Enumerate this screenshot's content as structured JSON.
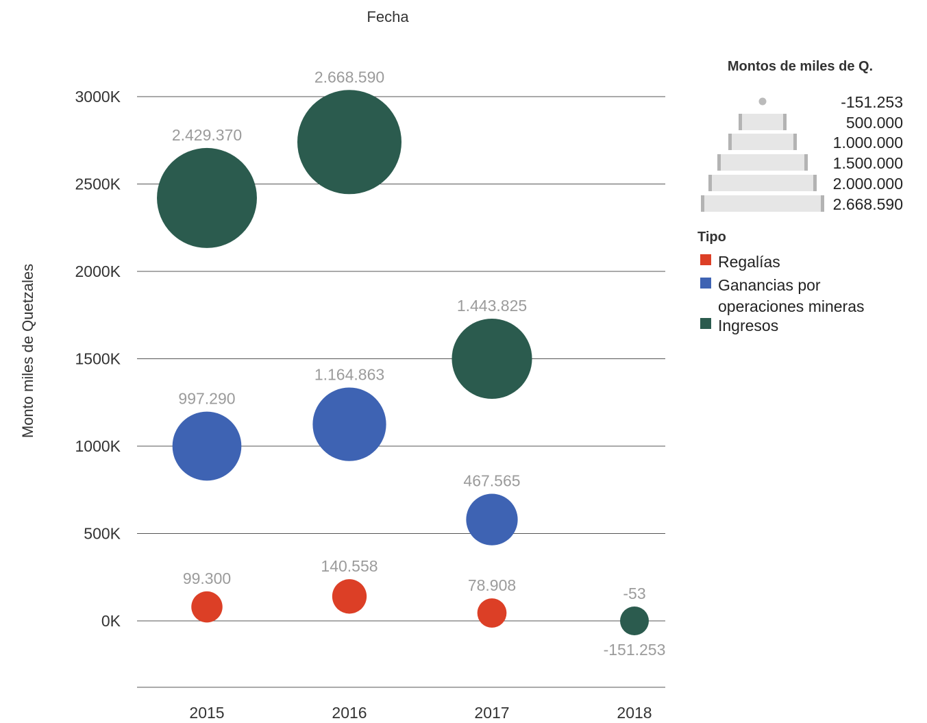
{
  "chart_data": {
    "type": "scatter",
    "title": "Fecha",
    "xlabel": "",
    "ylabel": "Monto miles de Quetzales",
    "categories": [
      "2015",
      "2016",
      "2017",
      "2018"
    ],
    "ylim": [
      -380,
      3200
    ],
    "y_ticks": [
      {
        "value": 0,
        "label": "0K"
      },
      {
        "value": 500,
        "label": "500K"
      },
      {
        "value": 1000,
        "label": "1000K"
      },
      {
        "value": 1500,
        "label": "1500K"
      },
      {
        "value": 2000,
        "label": "2000K"
      },
      {
        "value": 2500,
        "label": "2500K"
      },
      {
        "value": 3000,
        "label": "3000K"
      }
    ],
    "grid": true,
    "legend_position": "right",
    "size_legend": {
      "title": "Montos de miles de Q.",
      "entries": [
        "-151.253",
        "500.000",
        "1.000.000",
        "1.500.000",
        "2.000.000",
        "2.668.590"
      ]
    },
    "color_legend_title": "Tipo",
    "series": [
      {
        "name": "Regalías",
        "color": "#dc3f26",
        "points": [
          {
            "x": "2015",
            "y": 80,
            "label": "99.300"
          },
          {
            "x": "2016",
            "y": 140,
            "label": "140.558"
          },
          {
            "x": "2017",
            "y": 45,
            "label": "78.908"
          }
        ]
      },
      {
        "name": "Ganancias por operaciones mineras",
        "color": "#3e63b3",
        "points": [
          {
            "x": "2015",
            "y": 1000,
            "label": "997.290"
          },
          {
            "x": "2016",
            "y": 1125,
            "label": "1.164.863"
          },
          {
            "x": "2017",
            "y": 580,
            "label": "467.565"
          }
        ]
      },
      {
        "name": "Ingresos",
        "color": "#2b5b4e",
        "points": [
          {
            "x": "2015",
            "y": 2420,
            "label": "2.429.370"
          },
          {
            "x": "2016",
            "y": 2740,
            "label": "2.668.590"
          },
          {
            "x": "2017",
            "y": 1500,
            "label": "1.443.825"
          },
          {
            "x": "2018",
            "y": 0,
            "label": "-53",
            "label_below": "-151.253"
          }
        ]
      }
    ]
  }
}
